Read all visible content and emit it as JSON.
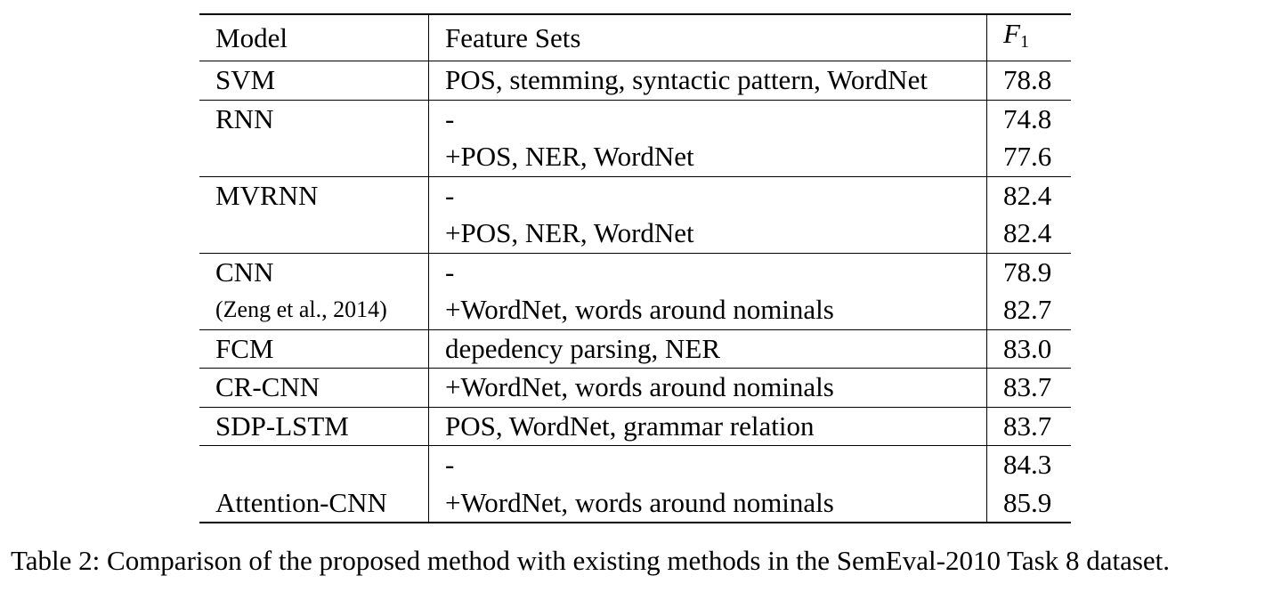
{
  "table": {
    "headers": {
      "model": "Model",
      "features": "Feature Sets",
      "f1_var": "F",
      "f1_sub": "1"
    },
    "rows": [
      {
        "model": "SVM",
        "features": "POS, stemming, syntactic pattern, WordNet",
        "f1": "78.8"
      },
      {
        "model": "RNN",
        "features": "-",
        "f1": "74.8"
      },
      {
        "model": "",
        "features": "+POS, NER, WordNet",
        "f1": "77.6"
      },
      {
        "model": "MVRNN",
        "features": "-",
        "f1": "82.4"
      },
      {
        "model": "",
        "features": "+POS, NER, WordNet",
        "f1": "82.4"
      },
      {
        "model": "CNN",
        "features": "-",
        "f1": "78.9"
      },
      {
        "model": "(Zeng et al., 2014)",
        "features": "+WordNet, words around nominals",
        "f1": "82.7"
      },
      {
        "model": "FCM",
        "features": "depedency parsing, NER",
        "f1": "83.0"
      },
      {
        "model": "CR-CNN",
        "features": "+WordNet, words around nominals",
        "f1": "83.7"
      },
      {
        "model": "SDP-LSTM",
        "features": "POS, WordNet, grammar relation",
        "f1": "83.7"
      },
      {
        "model": "",
        "features": "-",
        "f1": "84.3"
      },
      {
        "model": "Attention-CNN",
        "features": "+WordNet, words around nominals",
        "f1": "85.9"
      }
    ]
  },
  "caption": "Table 2: Comparison of the proposed method with existing methods in the SemEval-2010 Task 8 dataset."
}
